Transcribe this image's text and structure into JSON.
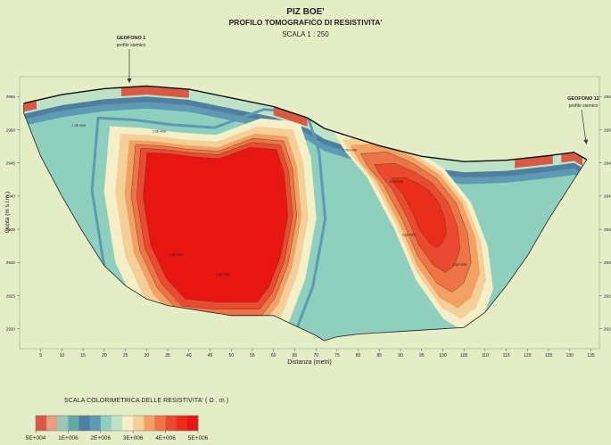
{
  "header": {
    "line1": "PIZ BOE'",
    "line2": "PROFILO TOMOGRAFICO DI RESISTIVITA'",
    "line3": "SCALA 1 : 250"
  },
  "annotations": {
    "geophone_left": [
      "GEOFONO 1",
      "profilo sismico"
    ],
    "geophone_right": [
      "GEOFONO 12",
      "profilo sismico"
    ]
  },
  "chart_data": {
    "type": "heatmap",
    "xlabel": "Distanza (metri)",
    "ylabel": "Quota (m s.l.m.)",
    "x_ticks": [
      5,
      10,
      15,
      20,
      25,
      30,
      35,
      40,
      45,
      50,
      55,
      60,
      65,
      70,
      75,
      80,
      85,
      90,
      95,
      100,
      105,
      110,
      115,
      120,
      125,
      130,
      135
    ],
    "xlim": [
      0,
      137
    ],
    "y_ticks": [
      2955,
      2950,
      2945,
      2940,
      2935,
      2930,
      2925,
      2920
    ],
    "ylim": [
      2917,
      2958
    ],
    "surface_profile": {
      "x": [
        1,
        10,
        20,
        30,
        40,
        50,
        60,
        68,
        72,
        78,
        85,
        95,
        105,
        115,
        125,
        131,
        134
      ],
      "y": [
        2954,
        2955.3,
        2956.2,
        2956.6,
        2956.1,
        2954.8,
        2953.5,
        2951.8,
        2950.2,
        2949.0,
        2947.6,
        2946.0,
        2945.2,
        2945.4,
        2946.1,
        2946.6,
        2945.5
      ]
    },
    "bottom_profile": {
      "x": [
        1,
        5,
        10,
        15,
        20,
        25,
        30,
        35,
        40,
        45,
        50,
        55,
        60,
        65,
        70,
        72,
        75,
        80,
        85,
        90,
        95,
        100,
        105,
        110,
        115,
        120,
        125,
        130,
        134
      ],
      "y": [
        2952.5,
        2946,
        2940,
        2934.5,
        2929.5,
        2926.5,
        2924.5,
        2923.5,
        2923,
        2922.5,
        2922,
        2922,
        2922,
        2920.5,
        2919,
        2918.2,
        2918.8,
        2919.2,
        2919.4,
        2919.6,
        2919.8,
        2920,
        2920.2,
        2922.5,
        2926.5,
        2931,
        2936.5,
        2941.5,
        2945.5
      ]
    },
    "anomalies": [
      {
        "name": "core",
        "center": [
          49,
          2938
        ],
        "shape": {
          "x": [
            28,
            34,
            40,
            47,
            55,
            62,
            64,
            65,
            63,
            60,
            57,
            46,
            38,
            33,
            29,
            27
          ],
          "y": [
            2947.5,
            2947.3,
            2946.8,
            2946.5,
            2948.4,
            2948,
            2944,
            2937,
            2930,
            2925,
            2922.5,
            2922.5,
            2923,
            2926.5,
            2932,
            2940
          ]
        },
        "max_resistivity": "5E+006"
      },
      {
        "name": "right-body",
        "center": [
          95,
          2939
        ],
        "shape": {
          "x": [
            79,
            86,
            93,
            99,
            104,
            107,
            108,
            106,
            103,
            99,
            94,
            90,
            85,
            81
          ],
          "y": [
            2947.2,
            2947.5,
            2945.5,
            2943,
            2939,
            2934,
            2929,
            2925.5,
            2924,
            2925.5,
            2930,
            2936,
            2942,
            2945
          ]
        },
        "max_resistivity": "4E+006"
      }
    ],
    "contour_labels": [
      "1,0E+006",
      "2,0E+006",
      "3,0E+006",
      "4,0E+006",
      "5,0E+006",
      "1,5E+006",
      "2,5E+006",
      "3,5E+006"
    ]
  },
  "colorscale": {
    "title": "SCALA COLORIMETRICA DELLE RESISTIVITA'  ( Ω . m )",
    "stops": [
      "#d85a44",
      "#e79f84",
      "#9fc7b8",
      "#62a9a6",
      "#4e7f9f",
      "#5e9ab4",
      "#8fcfbe",
      "#bfe2c7",
      "#f5efc7",
      "#f4cf98",
      "#f2a063",
      "#ee7446",
      "#ea4a30",
      "#ea2c1a",
      "#e81612"
    ],
    "labels": [
      "5E+004",
      "1E+006",
      "2E+006",
      "3E+006",
      "4E+006",
      "5E+006"
    ]
  }
}
